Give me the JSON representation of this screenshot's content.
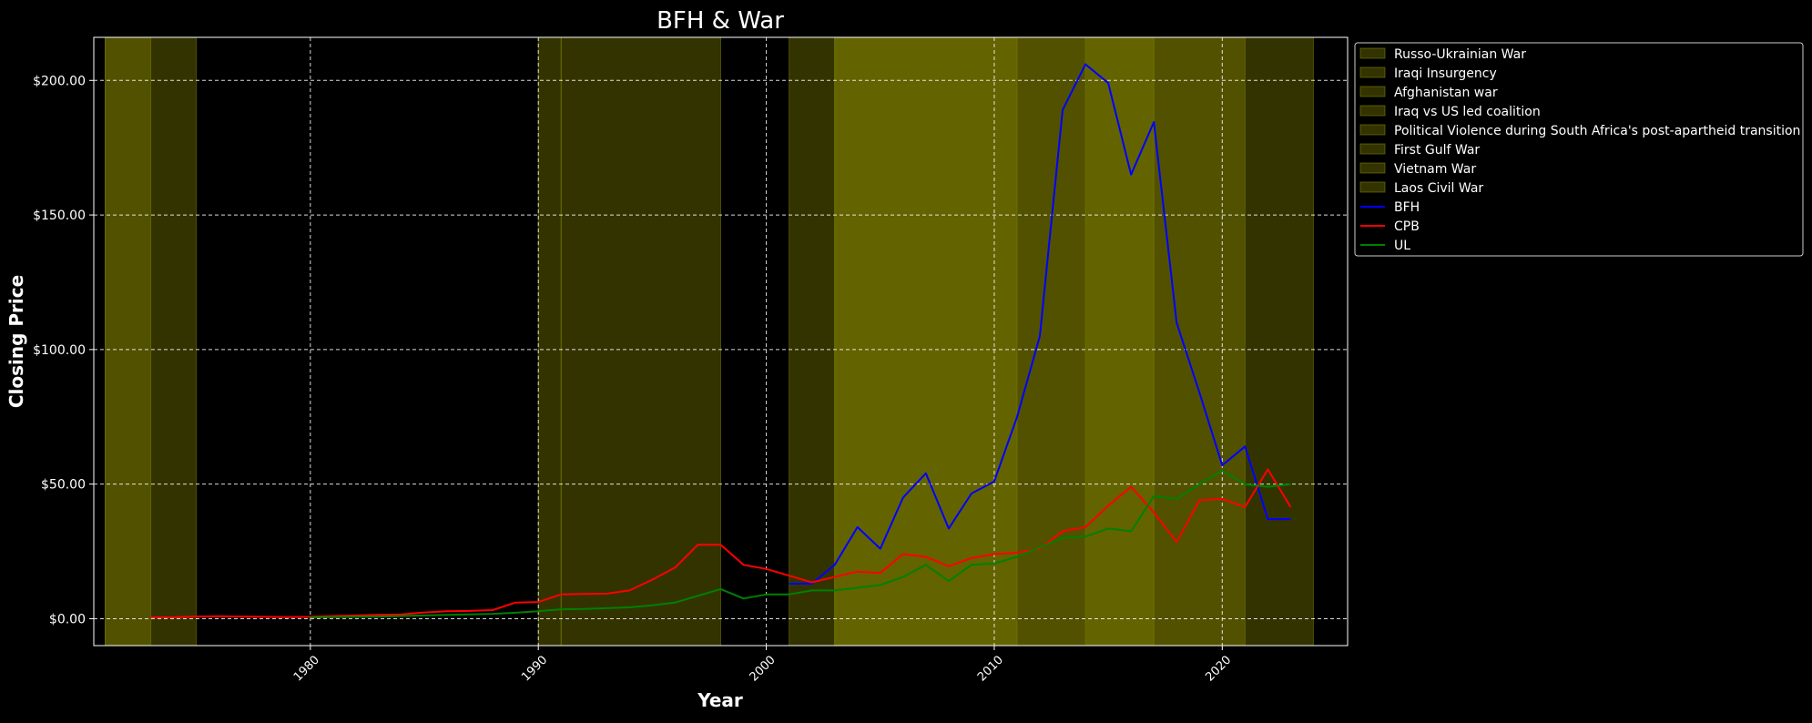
{
  "chart_data": {
    "type": "line",
    "title": "BFH & War",
    "xlabel": "Year",
    "ylabel": "Closing Price",
    "xlim": [
      1970.5,
      2025.5
    ],
    "ylim": [
      -10,
      216
    ],
    "x_ticks": [
      1980,
      1990,
      2000,
      2010,
      2020
    ],
    "y_ticks": [
      0,
      50,
      100,
      150,
      200
    ],
    "y_tick_labels": [
      "$0.00",
      "$50.00",
      "$100.00",
      "$150.00",
      "$200.00"
    ],
    "grid": true,
    "legend_position": "outside-top-right",
    "wars": [
      {
        "name": "Russo-Ukrainian War",
        "start": 2014,
        "end": 2024
      },
      {
        "name": "Iraqi Insurgency",
        "start": 2003,
        "end": 2017
      },
      {
        "name": "Afghanistan war",
        "start": 2001,
        "end": 2021
      },
      {
        "name": "Iraq vs US led coalition",
        "start": 2003,
        "end": 2011
      },
      {
        "name": "Political Violence during South Africa's post-apartheid transition",
        "start": 1991,
        "end": 1998
      },
      {
        "name": "First Gulf War",
        "start": 1990,
        "end": 1991
      },
      {
        "name": "Vietnam War",
        "start": 1971,
        "end": 1975
      },
      {
        "name": "Laos Civil War",
        "start": 1971,
        "end": 1973
      }
    ],
    "series": [
      {
        "name": "BFH",
        "color": "#0000ff",
        "x": [
          2001,
          2002,
          2003,
          2004,
          2005,
          2006,
          2007,
          2008,
          2009,
          2010,
          2011,
          2012,
          2013,
          2014,
          2015,
          2016,
          2017,
          2018,
          2019,
          2020,
          2021,
          2022,
          2023
        ],
        "y": [
          13,
          13,
          20,
          34,
          26,
          45,
          54,
          33.5,
          46.5,
          51,
          75,
          105,
          189,
          206,
          199,
          165,
          184.5,
          110,
          84,
          57,
          64,
          37,
          37
        ]
      },
      {
        "name": "CPB",
        "color": "#ff0000",
        "x": [
          1973,
          1974,
          1975,
          1976,
          1977,
          1978,
          1979,
          1980,
          1981,
          1982,
          1983,
          1984,
          1985,
          1986,
          1987,
          1988,
          1989,
          1990,
          1991,
          1992,
          1993,
          1994,
          1995,
          1996,
          1997,
          1998,
          1999,
          2000,
          2001,
          2002,
          2003,
          2004,
          2005,
          2006,
          2007,
          2008,
          2009,
          2010,
          2011,
          2012,
          2013,
          2014,
          2015,
          2016,
          2017,
          2018,
          2019,
          2020,
          2021,
          2022,
          2023
        ],
        "y": [
          0.5,
          0.5,
          0.8,
          0.9,
          0.8,
          0.7,
          0.6,
          0.7,
          1.0,
          1.2,
          1.4,
          1.6,
          2.3,
          2.8,
          2.9,
          3.2,
          6.0,
          6.2,
          9.0,
          9.2,
          9.3,
          10.5,
          14.5,
          19.0,
          27.5,
          27.5,
          20.0,
          18.5,
          16.0,
          13.5,
          15.5,
          17.5,
          17.0,
          24.0,
          23.0,
          19.5,
          22.5,
          24.0,
          24.5,
          26.0,
          32.5,
          34.0,
          42.0,
          49.0,
          39.5,
          28.5,
          44.0,
          44.5,
          41.5,
          55.5,
          41.5
        ]
      },
      {
        "name": "UL",
        "color": "#008000",
        "x": [
          1980,
          1981,
          1982,
          1983,
          1984,
          1985,
          1986,
          1987,
          1988,
          1989,
          1990,
          1991,
          1992,
          1993,
          1994,
          1995,
          1996,
          1997,
          1998,
          1999,
          2000,
          2001,
          2002,
          2003,
          2004,
          2005,
          2006,
          2007,
          2008,
          2009,
          2010,
          2011,
          2012,
          2013,
          2014,
          2015,
          2016,
          2017,
          2018,
          2019,
          2020,
          2021,
          2022,
          2023
        ],
        "y": [
          0.5,
          0.6,
          0.7,
          0.8,
          1.0,
          1.2,
          1.4,
          1.6,
          1.8,
          2.2,
          2.8,
          3.5,
          3.6,
          3.9,
          4.2,
          5.0,
          6.0,
          8.5,
          11.0,
          7.5,
          9.0,
          9.0,
          10.5,
          10.5,
          11.5,
          12.5,
          15.5,
          20.0,
          14.0,
          20.0,
          20.5,
          23.0,
          26.5,
          30.0,
          30.5,
          33.5,
          32.5,
          45.5,
          44.5,
          50.0,
          55.0,
          50.0,
          49.0,
          50.0
        ]
      }
    ],
    "colors": {
      "background": "#000000",
      "text": "#ffffff",
      "grid": "#ffffff",
      "war_band": "#808000"
    }
  }
}
